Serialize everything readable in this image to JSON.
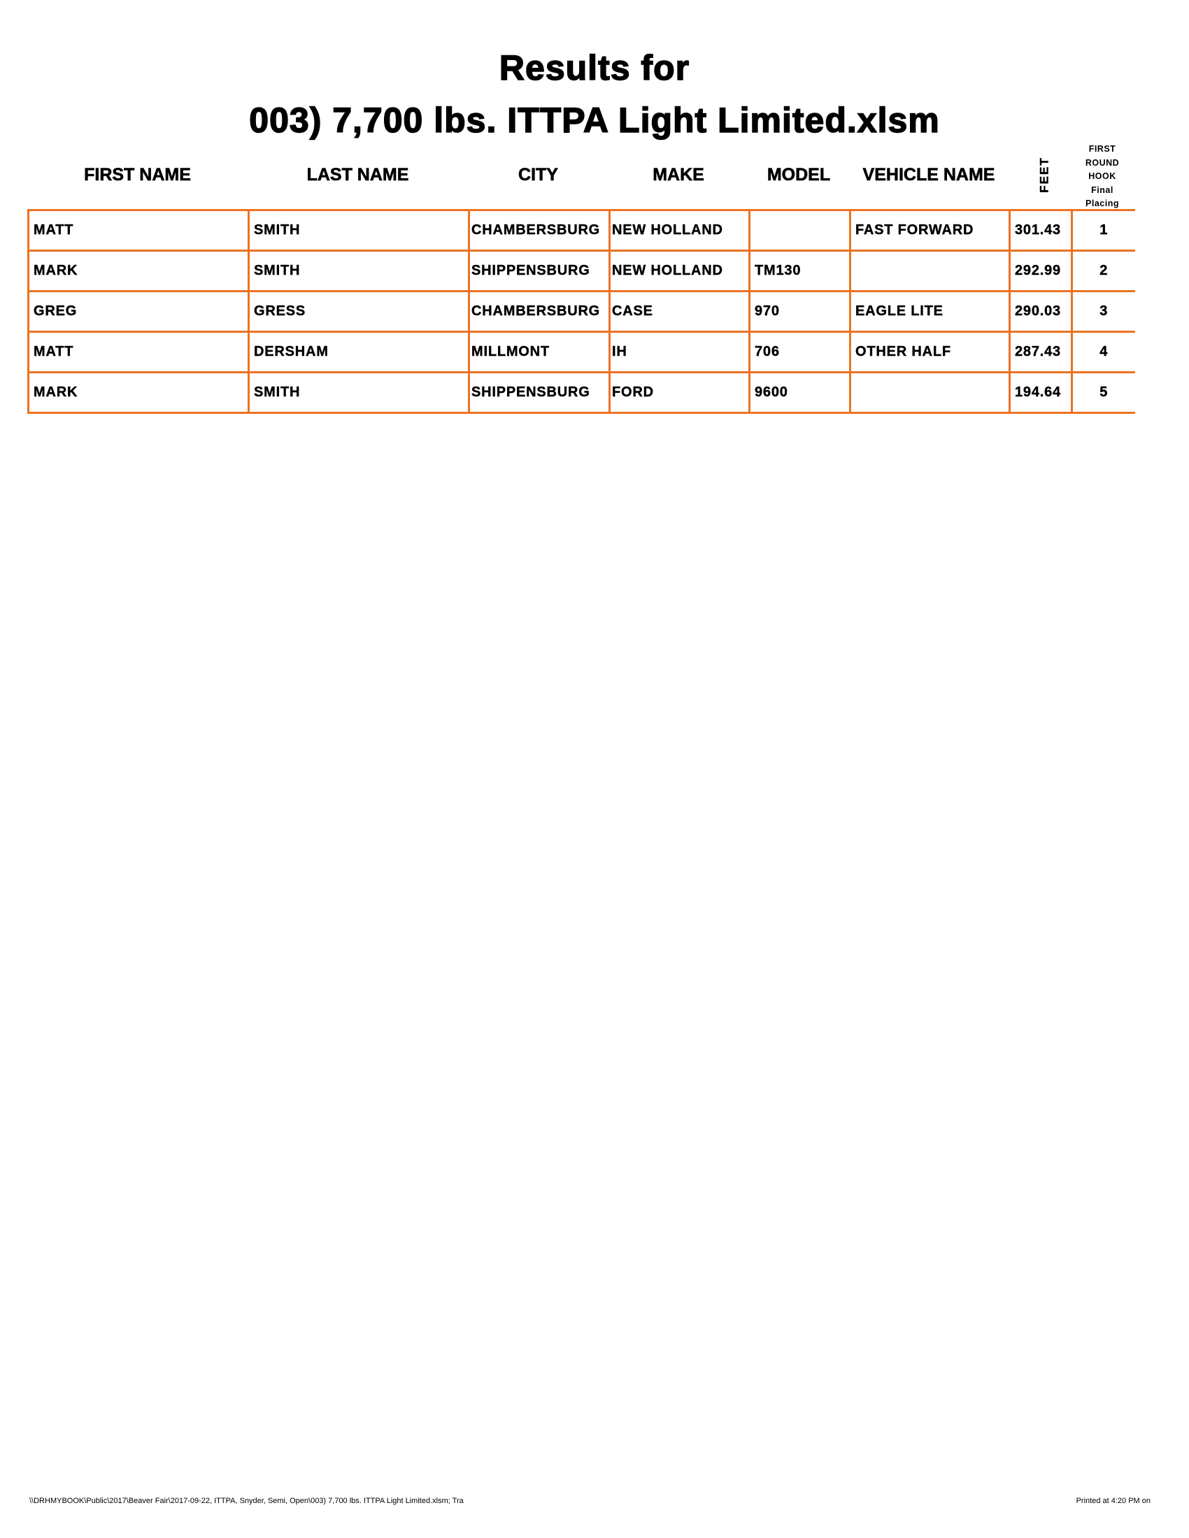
{
  "title": {
    "line1": "Results for",
    "line2": "003)  7,700 lbs. ITTPA Light Limited.xlsm"
  },
  "columns": [
    "FIRST NAME",
    "LAST NAME",
    "CITY",
    "MAKE",
    "MODEL",
    "VEHICLE NAME",
    "FEET"
  ],
  "placing_header": [
    "FIRST",
    "ROUND",
    "HOOK",
    "Final",
    "Placing"
  ],
  "rows": [
    [
      "MATT",
      "SMITH",
      "CHAMBERSBURG",
      "NEW HOLLAND",
      "",
      "FAST FORWARD",
      "301.43",
      "1"
    ],
    [
      "MARK",
      "SMITH",
      "SHIPPENSBURG",
      "NEW HOLLAND",
      "TM130",
      "",
      "292.99",
      "2"
    ],
    [
      "GREG",
      "GRESS",
      "CHAMBERSBURG",
      "CASE",
      "970",
      "EAGLE LITE",
      "290.03",
      "3"
    ],
    [
      "MATT",
      "DERSHAM",
      "MILLMONT",
      "IH",
      "706",
      "OTHER HALF",
      "287.43",
      "4"
    ],
    [
      "MARK",
      "SMITH",
      "SHIPPENSBURG",
      "FORD",
      "9600",
      "",
      "194.64",
      "5"
    ]
  ],
  "footer": {
    "left": "\\\\DRHMYBOOK\\Public\\2017\\Beaver Fair\\2017-09-22, ITTPA, Snyder, Semi, Open\\003)  7,700 lbs. ITTPA Light Limited.xlsm;  Tra",
    "right": "Printed at 4:20 PM on"
  },
  "colors": {
    "border": "#ec7321",
    "text": "#000000"
  }
}
